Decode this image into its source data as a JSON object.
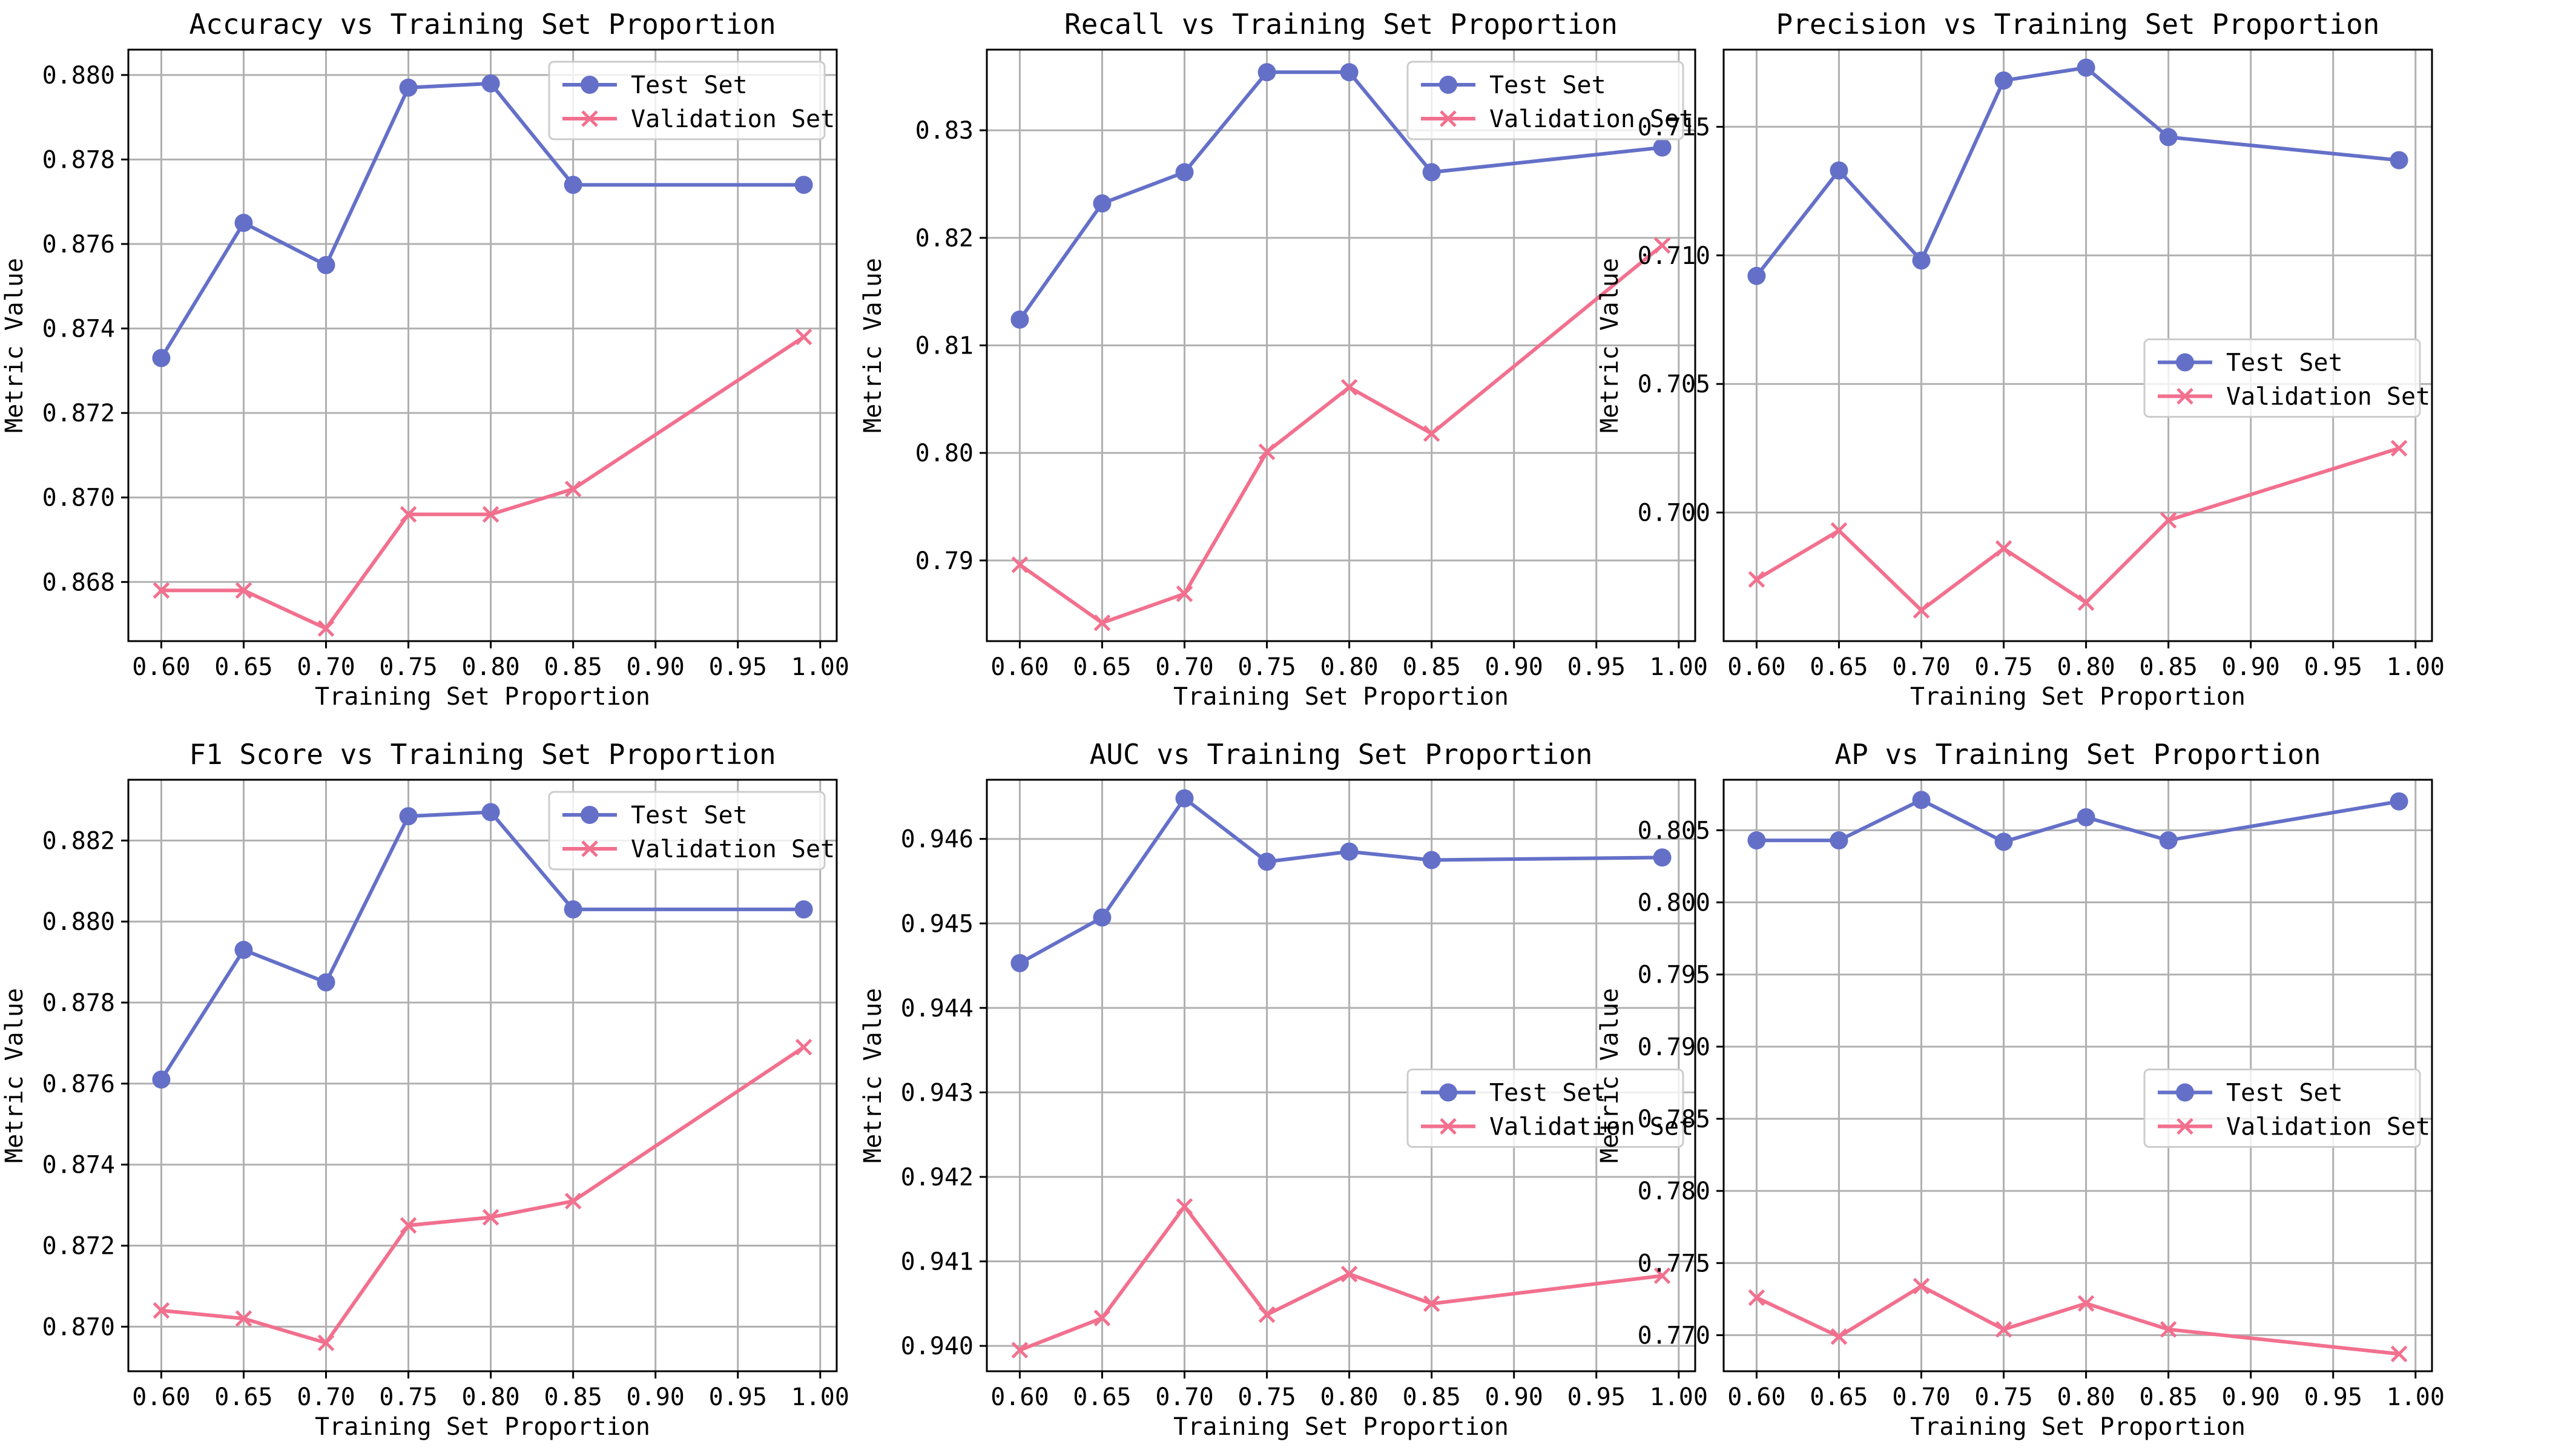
{
  "figure": {
    "xlabel": "Training Set Proportion",
    "ylabel": "Metric Value"
  },
  "colors": {
    "test": "#6470c8",
    "validation": "#f2708e"
  },
  "chart_data": [
    {
      "type": "line",
      "title": "Accuracy vs Training Set Proportion",
      "xlabel": "Training Set Proportion",
      "ylabel": "Metric Value",
      "xlim": [
        0.58,
        1.01
      ],
      "ylim": [
        0.8666,
        0.8806
      ],
      "xticks": [
        "0.60",
        "0.65",
        "0.70",
        "0.75",
        "0.80",
        "0.85",
        "0.90",
        "0.95",
        "1.00"
      ],
      "yticks": [
        "0.868",
        "0.870",
        "0.872",
        "0.874",
        "0.876",
        "0.878",
        "0.880"
      ],
      "legend_pos": "top-right",
      "x": [
        0.6,
        0.65,
        0.7,
        0.75,
        0.8,
        0.85,
        0.99
      ],
      "series": [
        {
          "name": "Test Set",
          "marker": "circle",
          "values": [
            0.8733,
            0.8765,
            0.8755,
            0.8797,
            0.8798,
            0.8774,
            0.8774
          ]
        },
        {
          "name": "Validation Set",
          "marker": "x",
          "values": [
            0.8678,
            0.8678,
            0.8669,
            0.8696,
            0.8696,
            0.8702,
            0.8738
          ]
        }
      ]
    },
    {
      "type": "line",
      "title": "Recall vs Training Set Proportion",
      "xlabel": "Training Set Proportion",
      "ylabel": "Metric Value",
      "xlim": [
        0.58,
        1.01
      ],
      "ylim": [
        0.7825,
        0.8375
      ],
      "xticks": [
        "0.60",
        "0.65",
        "0.70",
        "0.75",
        "0.80",
        "0.85",
        "0.90",
        "0.95",
        "1.00"
      ],
      "yticks": [
        "0.79",
        "0.80",
        "0.81",
        "0.82",
        "0.83"
      ],
      "legend_pos": "top-right",
      "x": [
        0.6,
        0.65,
        0.7,
        0.75,
        0.8,
        0.85,
        0.99
      ],
      "series": [
        {
          "name": "Test Set",
          "marker": "circle",
          "values": [
            0.8124,
            0.8232,
            0.8261,
            0.8354,
            0.8354,
            0.8261,
            0.8284
          ]
        },
        {
          "name": "Validation Set",
          "marker": "x",
          "values": [
            0.7896,
            0.7842,
            0.7869,
            0.8001,
            0.8061,
            0.8018,
            0.8193
          ]
        }
      ]
    },
    {
      "type": "line",
      "title": "Precision vs Training Set Proportion",
      "xlabel": "Training Set Proportion",
      "ylabel": "Metric Value",
      "xlim": [
        0.58,
        1.01
      ],
      "ylim": [
        0.695,
        0.718
      ],
      "xticks": [
        "0.60",
        "0.65",
        "0.70",
        "0.75",
        "0.80",
        "0.85",
        "0.90",
        "0.95",
        "1.00"
      ],
      "yticks": [
        "0.700",
        "0.705",
        "0.710",
        "0.715"
      ],
      "legend_pos": "center-right",
      "x": [
        0.6,
        0.65,
        0.7,
        0.75,
        0.8,
        0.85,
        0.99
      ],
      "series": [
        {
          "name": "Test Set",
          "marker": "circle",
          "values": [
            0.7092,
            0.7133,
            0.7098,
            0.7168,
            0.7173,
            0.7146,
            0.7137
          ]
        },
        {
          "name": "Validation Set",
          "marker": "x",
          "values": [
            0.6974,
            0.6993,
            0.6962,
            0.6986,
            0.6965,
            0.6997,
            0.7025
          ]
        }
      ]
    },
    {
      "type": "line",
      "title": "F1 Score vs Training Set Proportion",
      "xlabel": "Training Set Proportion",
      "ylabel": "Metric Value",
      "xlim": [
        0.58,
        1.01
      ],
      "ylim": [
        0.8689,
        0.8835
      ],
      "xticks": [
        "0.60",
        "0.65",
        "0.70",
        "0.75",
        "0.80",
        "0.85",
        "0.90",
        "0.95",
        "1.00"
      ],
      "yticks": [
        "0.870",
        "0.872",
        "0.874",
        "0.876",
        "0.878",
        "0.880",
        "0.882"
      ],
      "legend_pos": "top-right",
      "x": [
        0.6,
        0.65,
        0.7,
        0.75,
        0.8,
        0.85,
        0.99
      ],
      "series": [
        {
          "name": "Test Set",
          "marker": "circle",
          "values": [
            0.8761,
            0.8793,
            0.8785,
            0.8826,
            0.8827,
            0.8803,
            0.8803
          ]
        },
        {
          "name": "Validation Set",
          "marker": "x",
          "values": [
            0.8704,
            0.8702,
            0.8696,
            0.8725,
            0.8727,
            0.8731,
            0.8769
          ]
        }
      ]
    },
    {
      "type": "line",
      "title": "AUC vs Training Set Proportion",
      "xlabel": "Training Set Proportion",
      "ylabel": "Metric Value",
      "xlim": [
        0.58,
        1.01
      ],
      "ylim": [
        0.9397,
        0.9467
      ],
      "xticks": [
        "0.60",
        "0.65",
        "0.70",
        "0.75",
        "0.80",
        "0.85",
        "0.90",
        "0.95",
        "1.00"
      ],
      "yticks": [
        "0.940",
        "0.941",
        "0.942",
        "0.943",
        "0.944",
        "0.945",
        "0.946"
      ],
      "legend_pos": "center-right",
      "x": [
        0.6,
        0.65,
        0.7,
        0.75,
        0.8,
        0.85,
        0.99
      ],
      "series": [
        {
          "name": "Test Set",
          "marker": "circle",
          "values": [
            0.94453,
            0.94507,
            0.94648,
            0.94573,
            0.94585,
            0.94575,
            0.94578
          ]
        },
        {
          "name": "Validation Set",
          "marker": "x",
          "values": [
            0.93995,
            0.94033,
            0.94165,
            0.94037,
            0.94085,
            0.9405,
            0.94083
          ]
        }
      ]
    },
    {
      "type": "line",
      "title": "AP vs Training Set Proportion",
      "xlabel": "Training Set Proportion",
      "ylabel": "Metric Value",
      "xlim": [
        0.58,
        1.01
      ],
      "ylim": [
        0.7675,
        0.8085
      ],
      "xticks": [
        "0.60",
        "0.65",
        "0.70",
        "0.75",
        "0.80",
        "0.85",
        "0.90",
        "0.95",
        "1.00"
      ],
      "yticks": [
        "0.770",
        "0.775",
        "0.780",
        "0.785",
        "0.790",
        "0.795",
        "0.800",
        "0.805"
      ],
      "legend_pos": "center-right",
      "x": [
        0.6,
        0.65,
        0.7,
        0.75,
        0.8,
        0.85,
        0.99
      ],
      "series": [
        {
          "name": "Test Set",
          "marker": "circle",
          "values": [
            0.8043,
            0.8043,
            0.8071,
            0.8042,
            0.8059,
            0.8043,
            0.807
          ]
        },
        {
          "name": "Validation Set",
          "marker": "x",
          "values": [
            0.7726,
            0.7699,
            0.7734,
            0.7704,
            0.7722,
            0.7704,
            0.7687
          ]
        }
      ]
    }
  ]
}
